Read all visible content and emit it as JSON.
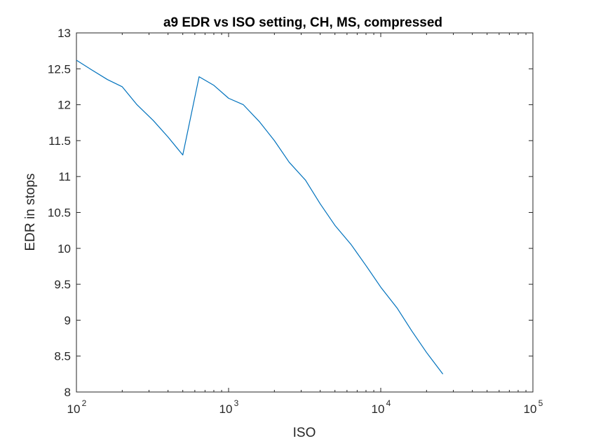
{
  "chart_data": {
    "type": "line",
    "title": "a9 EDR vs ISO setting, CH, MS, compressed",
    "xlabel": "ISO",
    "ylabel": "EDR in stops",
    "xscale": "log",
    "xlim": [
      100,
      100000
    ],
    "ylim": [
      8,
      13
    ],
    "grid": false,
    "legend": "none",
    "x_ticks": [
      {
        "base": "10",
        "exp": "2",
        "value": 100
      },
      {
        "base": "10",
        "exp": "3",
        "value": 1000
      },
      {
        "base": "10",
        "exp": "4",
        "value": 10000
      },
      {
        "base": "10",
        "exp": "5",
        "value": 100000
      }
    ],
    "y_ticks": [
      "8",
      "8.5",
      "9",
      "9.5",
      "10",
      "10.5",
      "11",
      "11.5",
      "12",
      "12.5",
      "13"
    ],
    "series": [
      {
        "color": "#0072BD",
        "x": [
          100,
          125,
          160,
          200,
          250,
          320,
          400,
          500,
          640,
          800,
          1000,
          1250,
          1600,
          2000,
          2500,
          3200,
          4000,
          5000,
          6400,
          8000,
          10000,
          12800,
          16000,
          20000,
          25600
        ],
        "y": [
          12.62,
          12.49,
          12.35,
          12.25,
          12.0,
          11.78,
          11.55,
          11.3,
          12.39,
          12.27,
          12.09,
          12.0,
          11.76,
          11.5,
          11.2,
          10.95,
          10.62,
          10.32,
          10.05,
          9.76,
          9.46,
          9.17,
          8.85,
          8.55,
          8.25
        ]
      }
    ]
  }
}
